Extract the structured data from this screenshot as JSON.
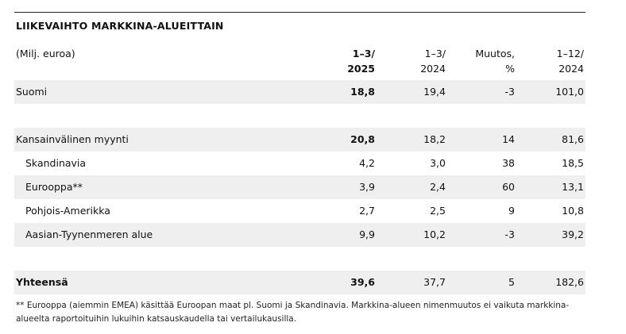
{
  "title": "LIIKEVAIHTO MARKKINA-ALUEITTAIN",
  "header": {
    "unit": "(Milj. euroa)",
    "col1": [
      "1–3/",
      "2025"
    ],
    "col2": [
      "1–3/",
      "2024"
    ],
    "col3": [
      "Muutos,",
      "%"
    ],
    "col4": [
      "1–12/",
      "2024"
    ]
  },
  "rows": [
    {
      "label": "Suomi",
      "v1": "18,8",
      "v2": "19,4",
      "v3": "-3",
      "v4": "101,0"
    },
    {
      "label": "Kansainvälinen myynti",
      "v1": "20,8",
      "v2": "18,2",
      "v3": "14",
      "v4": "81,6"
    },
    {
      "label": "Skandinavia",
      "v1": "4,2",
      "v2": "3,0",
      "v3": "38",
      "v4": "18,5"
    },
    {
      "label": "Eurooppa**",
      "v1": "3,9",
      "v2": "2,4",
      "v3": "60",
      "v4": "13,1"
    },
    {
      "label": "Pohjois-Amerikka",
      "v1": "2,7",
      "v2": "2,5",
      "v3": "9",
      "v4": "10,8"
    },
    {
      "label": "Aasian-Tyynenmeren alue",
      "v1": "9,9",
      "v2": "10,2",
      "v3": "-3",
      "v4": "39,2"
    },
    {
      "label": "Yhteensä",
      "v1": "39,6",
      "v2": "37,7",
      "v3": "5",
      "v4": "182,6"
    }
  ],
  "footnote": "** Eurooppa (aiemmin EMEA) käsittää Euroopan maat pl. Suomi ja Skandinavia. Markkina-alueen nimenmuutos ei vaikuta markkina-alueelta raportoituihin lukuihin katsauskaudella tai vertailukausilla."
}
